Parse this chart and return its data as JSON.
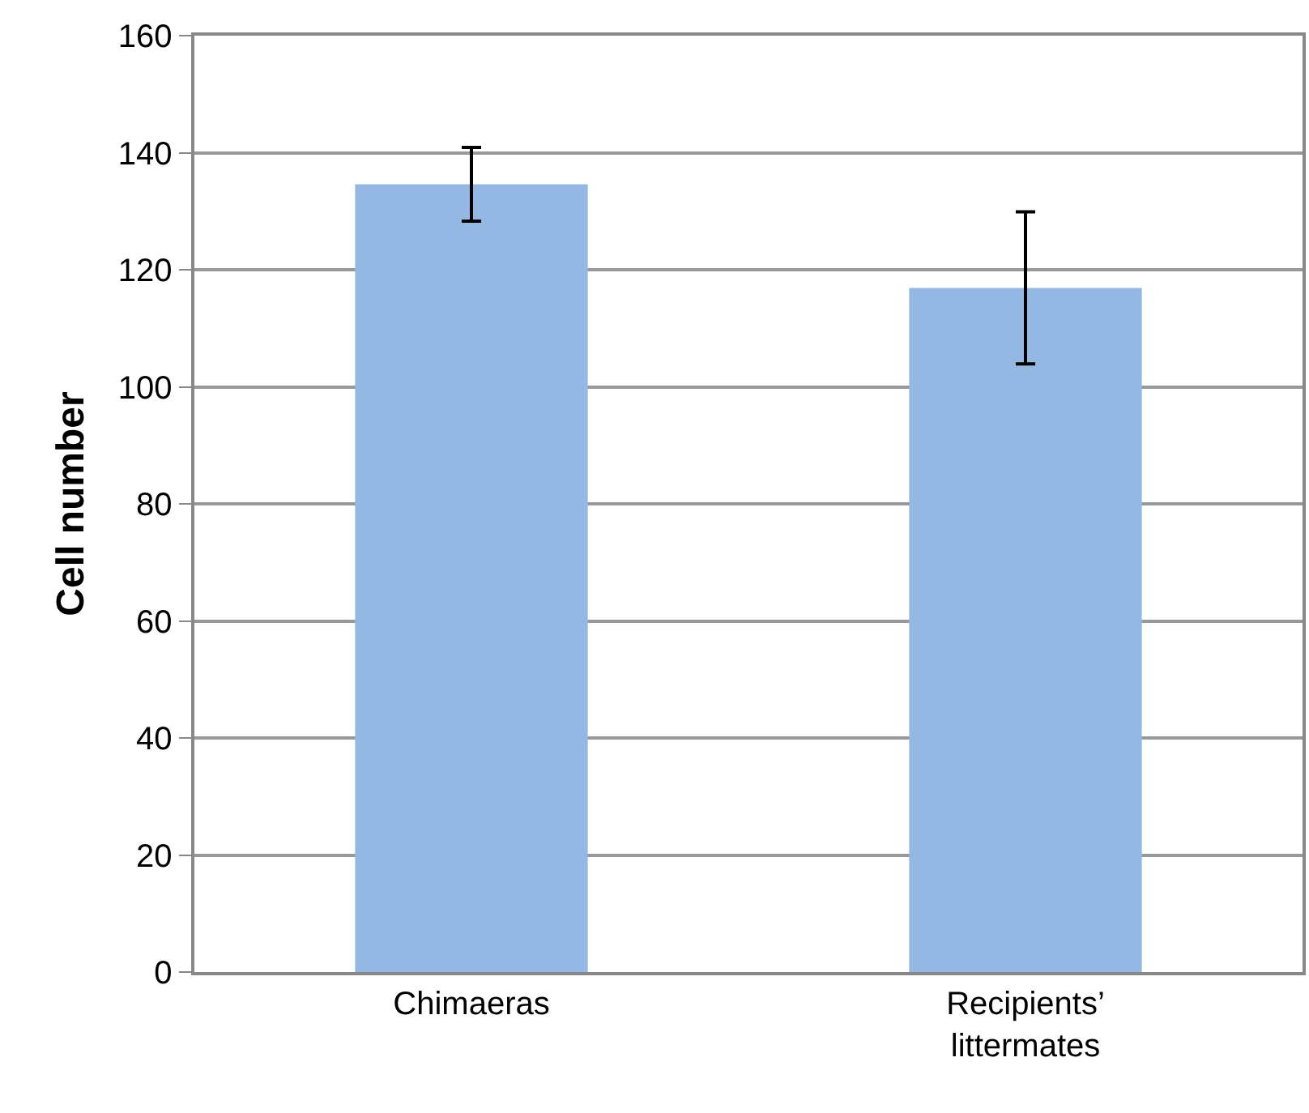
{
  "chart_data": {
    "type": "bar",
    "ylabel": "Cell number",
    "categories": [
      "Chimaeras",
      "Recipients’\nlittermates"
    ],
    "values": [
      134.6,
      116.9
    ],
    "errors": [
      6.3,
      13
    ],
    "color": "#93b8e3",
    "ylim": [
      0,
      160
    ],
    "yticks": [
      0,
      20,
      40,
      60,
      80,
      100,
      120,
      140,
      160
    ],
    "grid": "y"
  }
}
